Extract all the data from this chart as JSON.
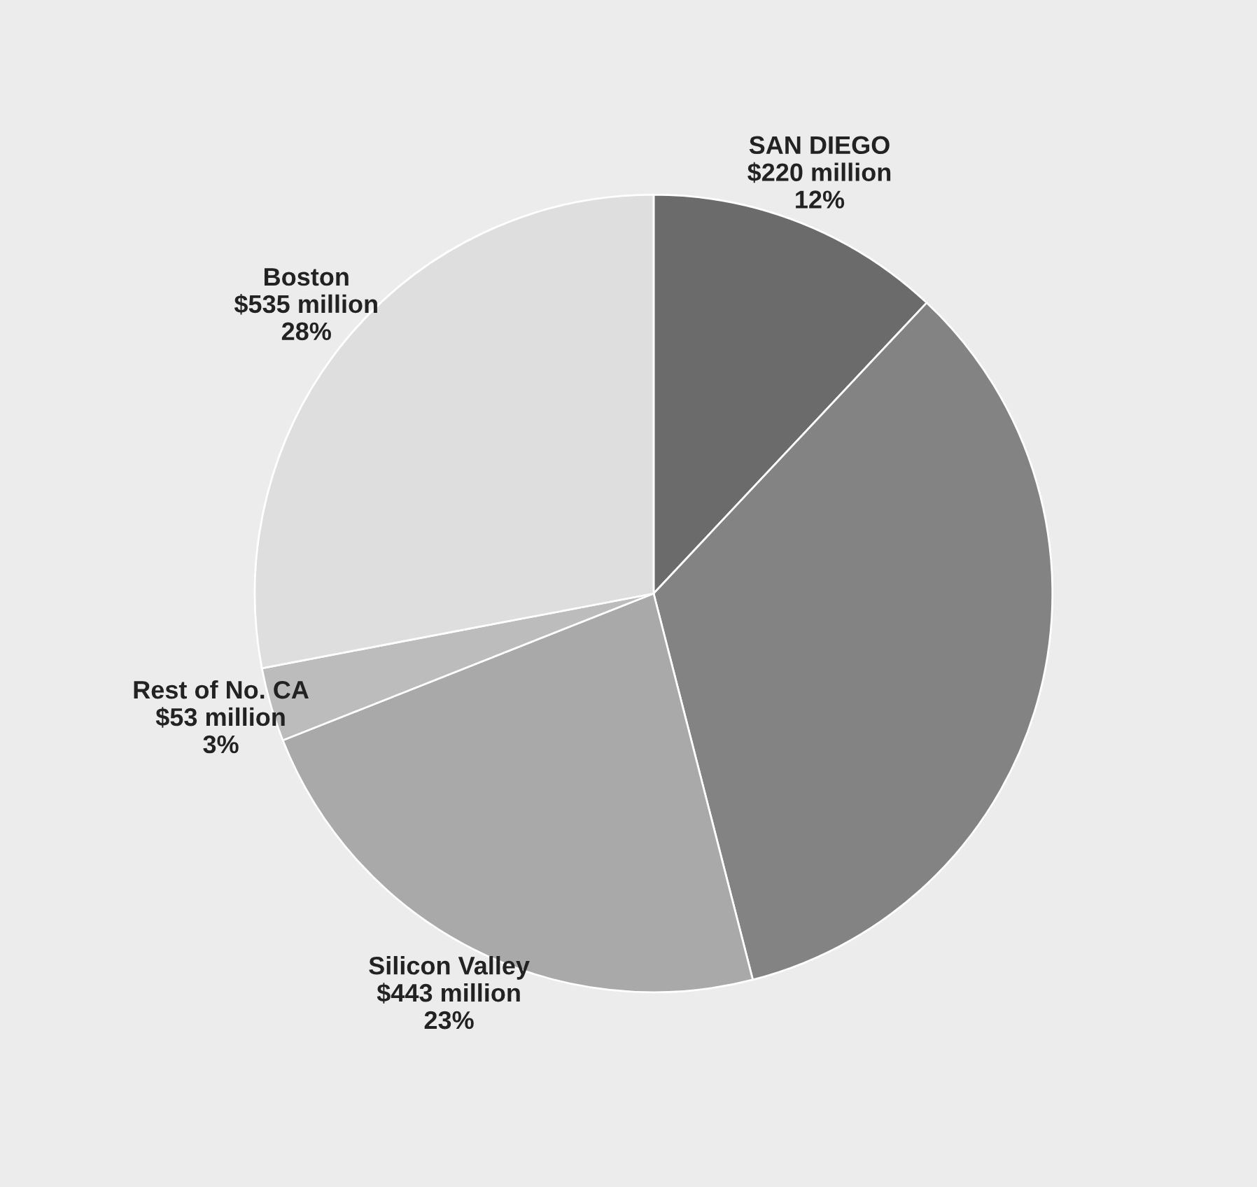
{
  "chart_data": {
    "type": "pie",
    "categories": [
      "SAN DIEGO",
      null,
      "Silicon Valley",
      "Rest of No. CA",
      "Boston"
    ],
    "values": [
      12,
      34,
      23,
      3,
      28
    ],
    "value_labels": [
      "$220 million\n12%",
      null,
      "$443 million\n23%",
      "$53 million\n3%",
      "$535 million\n28%"
    ],
    "colors": [
      "#6b6b6b",
      "#838383",
      "#a9a9a9",
      "#bcbcbc",
      "#dedede"
    ]
  }
}
